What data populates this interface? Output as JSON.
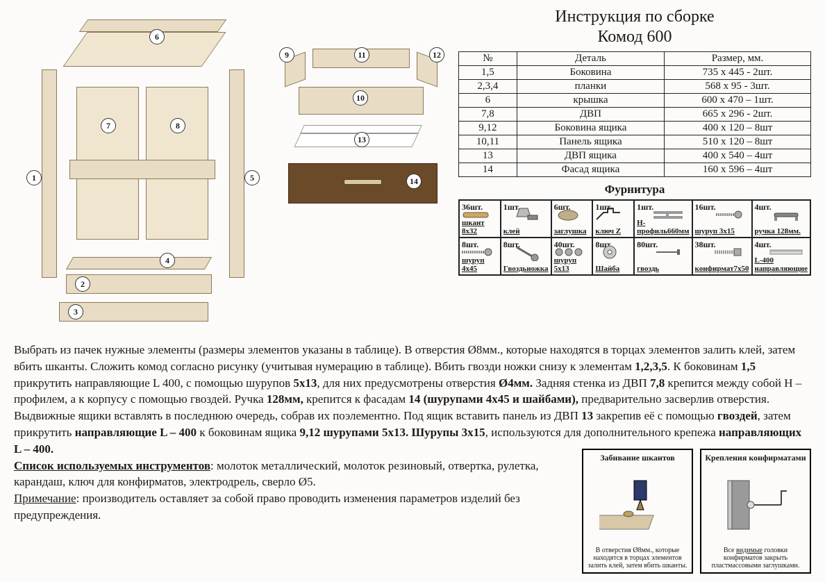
{
  "title_line1": "Инструкция по сборке",
  "title_line2": "Комод 600",
  "parts_table": {
    "headers": [
      "№",
      "Деталь",
      "Размер, мм."
    ],
    "rows": [
      [
        "1,5",
        "Боковина",
        "735 х 445 - 2шт."
      ],
      [
        "2,3,4",
        "планки",
        "568 х 95 - 3шт."
      ],
      [
        "6",
        "крышка",
        "600 х 470 – 1шт."
      ],
      [
        "7,8",
        "ДВП",
        "665 х 296 - 2шт."
      ],
      [
        "9,12",
        "Боковина ящика",
        "400 х 120 – 8шт"
      ],
      [
        "10,11",
        "Панель ящика",
        "510 х 120 – 8шт"
      ],
      [
        "13",
        "ДВП ящика",
        "400 х 540 – 4шт"
      ],
      [
        "14",
        "Фасад ящика",
        "160 х 596 – 4шт"
      ]
    ]
  },
  "hardware_title": "Фурнитура",
  "hardware": [
    {
      "qty": "36шт.",
      "name": "шкант 8х32",
      "icon": "dowel"
    },
    {
      "qty": "1шт.",
      "name": "клей",
      "icon": "glue"
    },
    {
      "qty": "6шт.",
      "name": "заглушка",
      "icon": "cap"
    },
    {
      "qty": "1шт.",
      "name": "ключ Z",
      "icon": "key"
    },
    {
      "qty": "1шт.",
      "name": "Н-профиль660мм",
      "icon": "profile"
    },
    {
      "qty": "16шт.",
      "name": "шуруп 3х15",
      "icon": "screw"
    },
    {
      "qty": "4шт.",
      "name": "ручка 128мм.",
      "icon": "handle"
    },
    {
      "qty": "8шт.",
      "name": "шуруп 4х45",
      "icon": "screw2"
    },
    {
      "qty": "8шт.",
      "name": "Гвоздьножка",
      "icon": "nailfoot"
    },
    {
      "qty": "40шт.",
      "name": "шуруп 5х13",
      "icon": "screw3"
    },
    {
      "qty": "8шт.",
      "name": "Шайба",
      "icon": "washer"
    },
    {
      "qty": "80шт.",
      "name": "гвоздь",
      "icon": "nail"
    },
    {
      "qty": "38шт.",
      "name": "конфирмат7х50",
      "icon": "confirmat"
    },
    {
      "qty": "4шт.",
      "name": "L-400 направляющие",
      "icon": "rail"
    }
  ],
  "callouts_left": [
    "1",
    "2",
    "3",
    "4",
    "5",
    "6",
    "7",
    "8"
  ],
  "callouts_mid": [
    "9",
    "10",
    "11",
    "12",
    "13",
    "14"
  ],
  "instr": {
    "p1a": "Выбрать из пачек нужные элементы (размеры элементов указаны в таблице).  В отверстия Ø8мм., которые находятся в торцах элементов залить клей, затем вбить шканты. Сложить комод согласно рисунку (учитывая нумерацию в таблице).  Вбить гвозди ножки снизу к элементам ",
    "b1": "1,2,3,5",
    "p1b": ". К боковинам ",
    "b2": "1,5",
    "p1c": " прикрутить направляющие L 400, с помощью шурупов ",
    "b3": "5х13",
    "p1d": ", для них предусмотрены отверстия ",
    "b4": "Ø4мм.",
    "p1e": " Задняя стенка из ДВП ",
    "b5": "7,8",
    "p1f": " крепится между собой Н – профилем, а к корпусу с помощью гвоздей. Ручка ",
    "b6": "128мм,",
    "p1g": " крепится к фасадам ",
    "b7": "14 (шурупами 4х45 и шайбами),",
    "p1h": " предварительно засверлив отверстия. Выдвижные ящики вставлять в последнюю очередь, собрав их поэлементно. Под ящик вставить панель из ДВП ",
    "b8": "13",
    "p1i": " закрепив её с помощью ",
    "b9": "гвоздей",
    "p1j": ", затем прикрутить ",
    "b10": "направляющие L – 400",
    "p1k": " к боковинам ящика ",
    "b11": "9,12 шурупами 5х13. Шурупы 3х15",
    "p1l": ", используются для дополнительного крепежа ",
    "b12": "направляющих L – 400.",
    "tools_h": "Список используемых  инструментов",
    "tools": ": молоток  металлический, молоток резиновый, отвертка, рулетка, карандаш, ключ для конфирматов, электродрель, сверло Ø5.",
    "note_h": "Примечание",
    "note": ": производитель оставляет за собой право проводить изменения параметров изделий без предупреждения."
  },
  "box1": {
    "title": "Забивание шкантов",
    "caption": "В отверстия Ø8мм., которые находятся в торцах элементов залить клей, затем вбить шканты."
  },
  "box2": {
    "title": "Крепления конфирматами",
    "caption_a": "Все ",
    "caption_u": "видимые",
    "caption_b": " головки конфирматов закрыть пластмассовыми заглушками."
  },
  "colors": {
    "wood_light": "#e8dcc4",
    "wood_dark": "#6b4a2a",
    "bg": "#fcfbf9",
    "line": "#333333"
  }
}
